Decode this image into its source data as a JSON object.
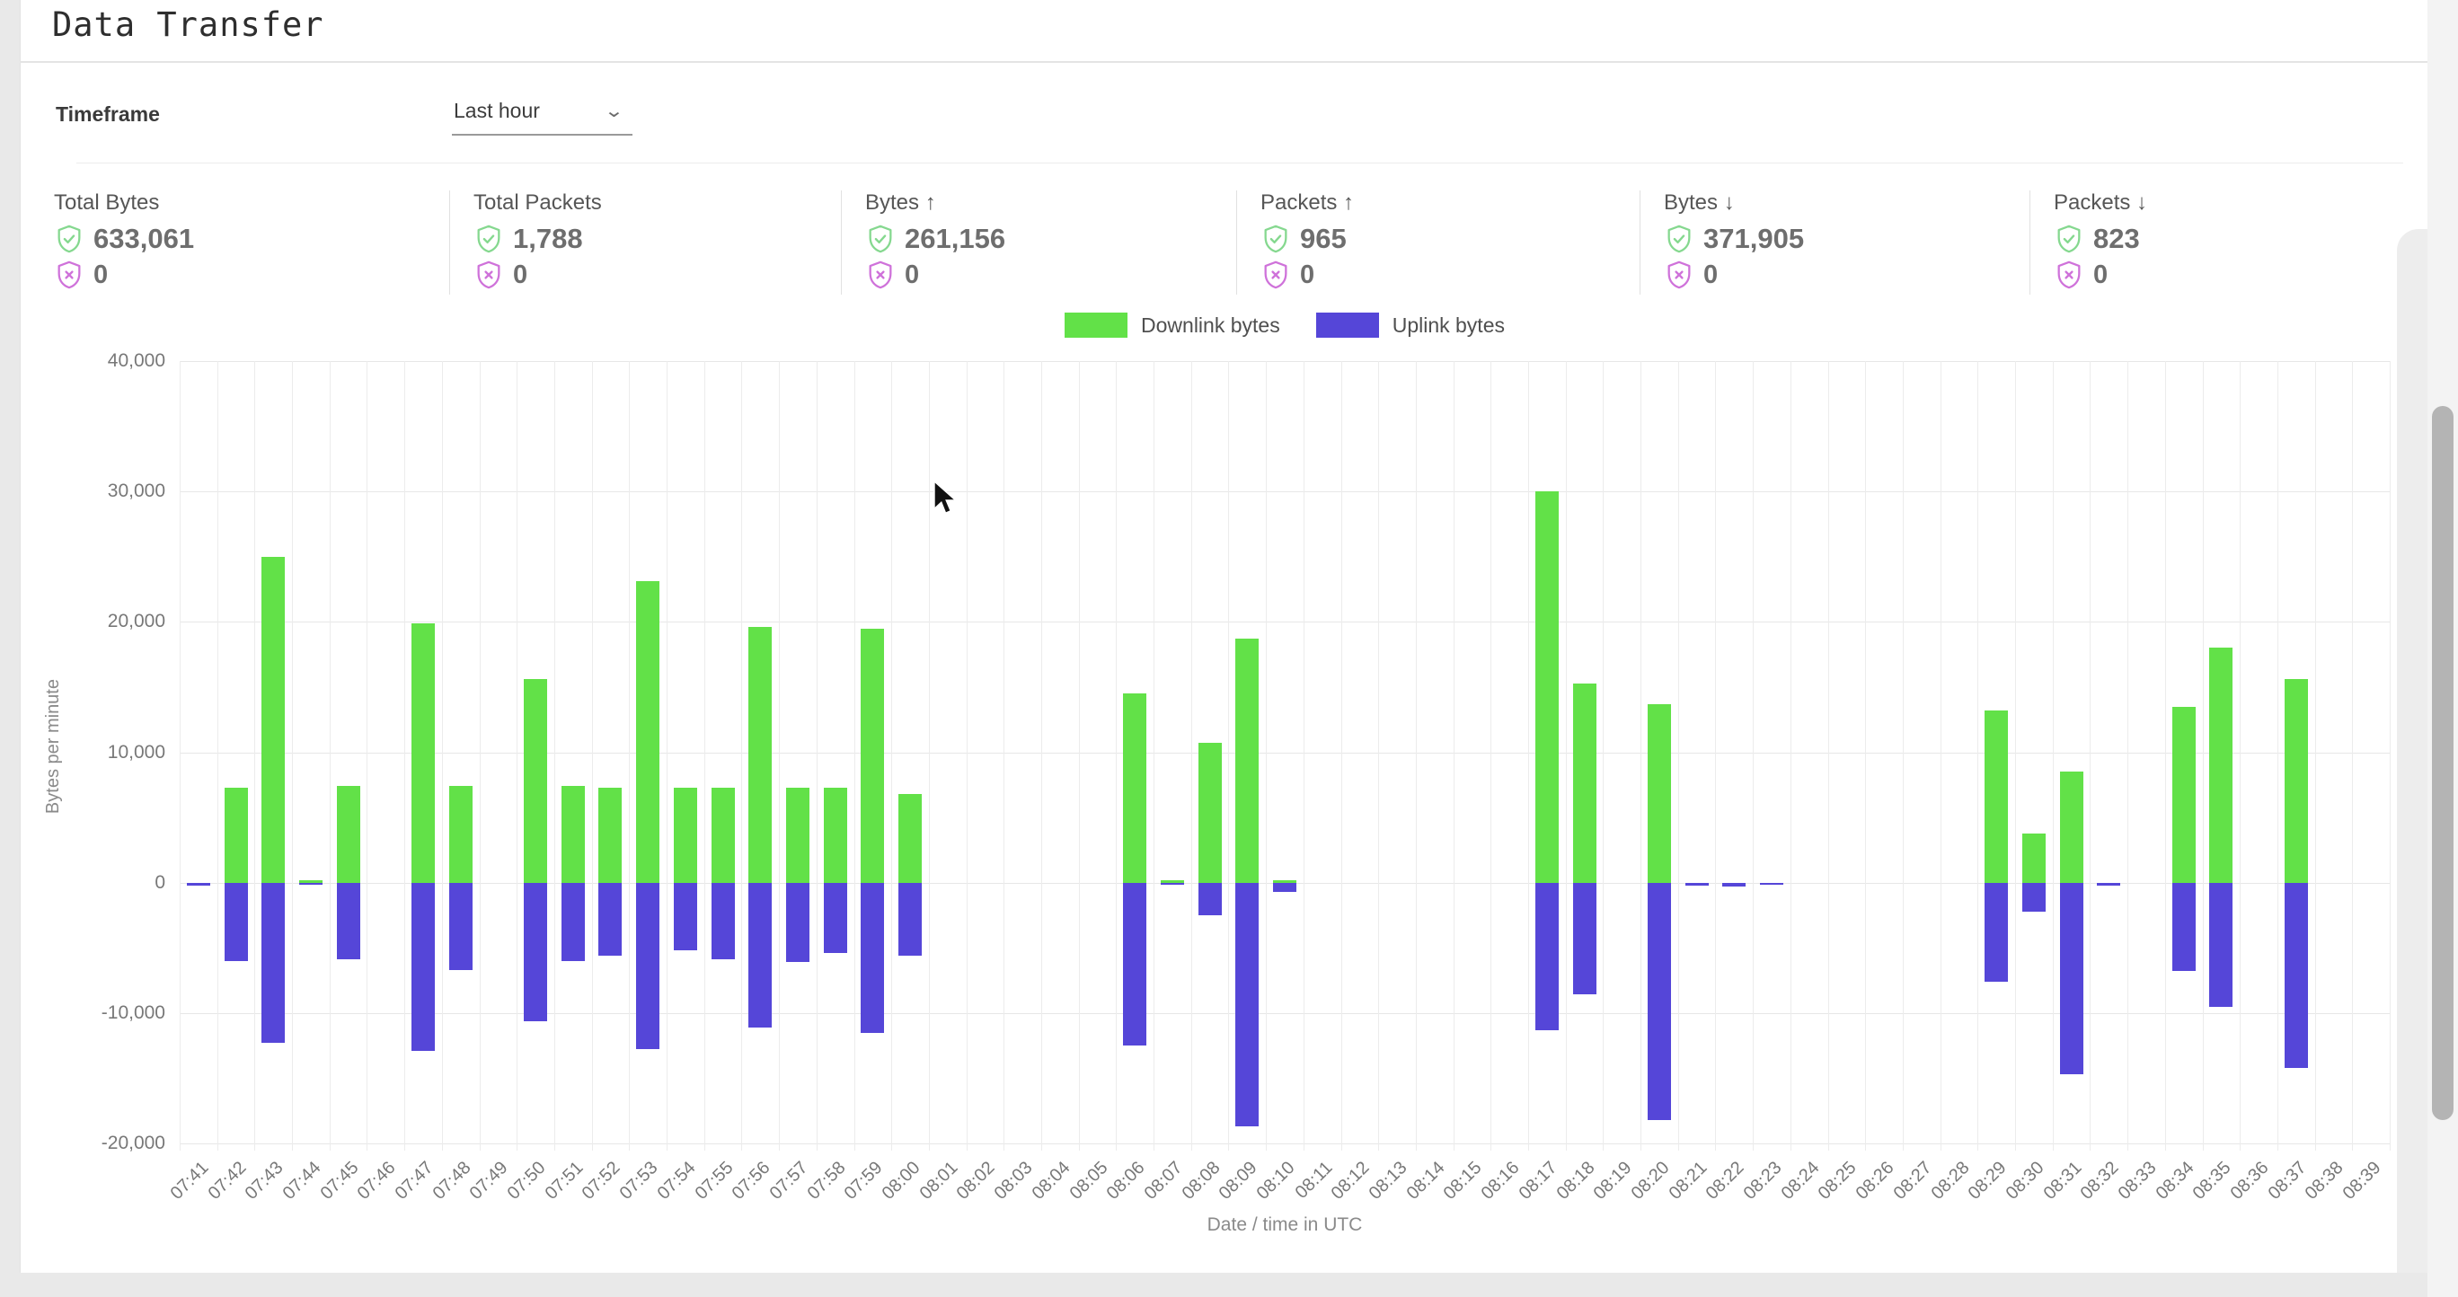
{
  "page": {
    "title": "Data Transfer"
  },
  "timeframe": {
    "label": "Timeframe",
    "value": "Last hour",
    "chevron_icon": "⌄"
  },
  "stats": [
    {
      "label": "Total Bytes",
      "ok_value": "633,061",
      "err_value": "0"
    },
    {
      "label": "Total Packets",
      "ok_value": "1,788",
      "err_value": "0"
    },
    {
      "label": "Bytes ↑",
      "ok_value": "261,156",
      "err_value": "0"
    },
    {
      "label": "Packets ↑",
      "ok_value": "965",
      "err_value": "0"
    },
    {
      "label": "Bytes ↓",
      "ok_value": "371,905",
      "err_value": "0"
    },
    {
      "label": "Packets ↓",
      "ok_value": "823",
      "err_value": "0"
    }
  ],
  "icons": {
    "ok_shield_color": "#85d88f",
    "err_shield_color": "#cf72da"
  },
  "chart_data": {
    "type": "bar",
    "title": "",
    "xlabel": "Date / time in UTC",
    "ylabel": "Bytes per minute",
    "ylim": [
      -20000,
      40000
    ],
    "ytick_step": 10000,
    "yticks": [
      "40,000",
      "30,000",
      "20,000",
      "10,000",
      "0",
      "-10,000",
      "-20,000"
    ],
    "grid": true,
    "legend_position": "top-center",
    "categories": [
      "07:41",
      "07:42",
      "07:43",
      "07:44",
      "07:45",
      "07:46",
      "07:47",
      "07:48",
      "07:49",
      "07:50",
      "07:51",
      "07:52",
      "07:53",
      "07:54",
      "07:55",
      "07:56",
      "07:57",
      "07:58",
      "07:59",
      "08:00",
      "08:01",
      "08:02",
      "08:03",
      "08:04",
      "08:05",
      "08:06",
      "08:07",
      "08:08",
      "08:09",
      "08:10",
      "08:11",
      "08:12",
      "08:13",
      "08:14",
      "08:15",
      "08:16",
      "08:17",
      "08:18",
      "08:19",
      "08:20",
      "08:21",
      "08:22",
      "08:23",
      "08:24",
      "08:25",
      "08:26",
      "08:27",
      "08:28",
      "08:29",
      "08:30",
      "08:31",
      "08:32",
      "08:33",
      "08:34",
      "08:35",
      "08:36",
      "08:37",
      "08:38",
      "08:39"
    ],
    "series": [
      {
        "name": "Downlink bytes",
        "color": "#62e148",
        "values": [
          0,
          7300,
          25000,
          150,
          7400,
          0,
          19900,
          7400,
          0,
          15600,
          7400,
          7300,
          23100,
          7300,
          7300,
          19600,
          7300,
          7300,
          19500,
          6800,
          0,
          0,
          0,
          0,
          0,
          14500,
          150,
          10700,
          18700,
          150,
          0,
          0,
          0,
          0,
          0,
          0,
          30000,
          15300,
          0,
          13700,
          0,
          0,
          0,
          0,
          0,
          0,
          0,
          0,
          13200,
          3800,
          8500,
          0,
          0,
          13500,
          18000,
          0,
          15600,
          0,
          0
        ]
      },
      {
        "name": "Uplink bytes",
        "color": "#5546d8",
        "values": [
          -250,
          -6000,
          -12300,
          -150,
          -5900,
          0,
          -12900,
          -6700,
          0,
          -10600,
          -6000,
          -5600,
          -12800,
          -5200,
          -5900,
          -11100,
          -6100,
          -5400,
          -11500,
          -5600,
          0,
          0,
          0,
          0,
          0,
          -12500,
          -150,
          -2500,
          -18700,
          -700,
          0,
          0,
          0,
          0,
          0,
          0,
          -11300,
          -8600,
          0,
          -18200,
          -250,
          -300,
          -150,
          0,
          0,
          0,
          0,
          0,
          -7600,
          -2200,
          -14700,
          -250,
          0,
          -6800,
          -9500,
          0,
          -14200,
          0,
          0
        ]
      }
    ]
  }
}
